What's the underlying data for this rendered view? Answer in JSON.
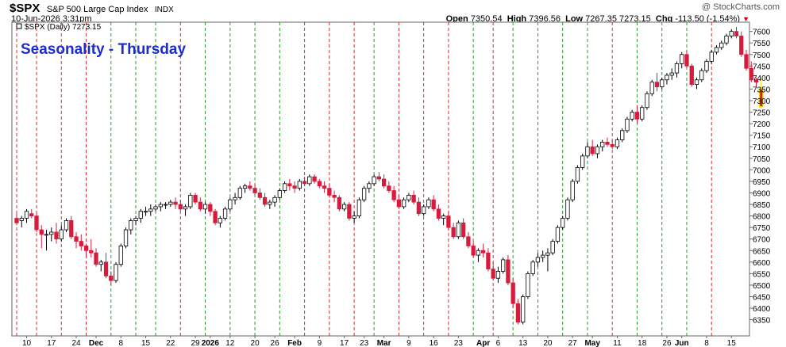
{
  "header": {
    "symbol": "$SPX",
    "name": "S&P 500 Large Cap Index",
    "exchange": "INDX",
    "credit": "@ StockCharts.com",
    "datetime": "10-Jun-2026 3:31pm",
    "open_label": "Open",
    "open": "7350.54",
    "high_label": "High",
    "high": "7396.56",
    "low_label": "Low",
    "low": "7267.35",
    "last": "7273.15",
    "chg_label": "Chg",
    "chg": "-113.50 (-1.54%)"
  },
  "chart_data": {
    "type": "candlestick",
    "title": "Seasonality - Thursday",
    "legend": "$SPX (Daily) 7273.15",
    "legend_position": "top-left",
    "y_axis_side": "right",
    "ylim": [
      6280,
      7640
    ],
    "yticks": [
      6350,
      6400,
      6450,
      6500,
      6550,
      6600,
      6650,
      6700,
      6750,
      6800,
      6850,
      6900,
      6950,
      7000,
      7050,
      7100,
      7150,
      7200,
      7250,
      7300,
      7350,
      7400,
      7450,
      7500,
      7550,
      7600
    ],
    "x_labels": [
      "10",
      "17",
      "24",
      "Dec",
      "8",
      "15",
      "22",
      "29",
      "2026",
      "12",
      "20",
      "26",
      "Feb",
      "9",
      "17",
      "23",
      "Mar",
      "9",
      "16",
      "23",
      "Apr",
      "6",
      "13",
      "20",
      "27",
      "May",
      "11",
      "18",
      "26",
      "Jun",
      "8",
      "15"
    ],
    "x_label_days": [
      2,
      7,
      12,
      16,
      21,
      26,
      31,
      36,
      39,
      43,
      48,
      52,
      56,
      61,
      66,
      70,
      74,
      79,
      84,
      89,
      94,
      97,
      102,
      107,
      112,
      116,
      121,
      126,
      131,
      134,
      139,
      144
    ],
    "num_days": 147,
    "up_color": "#000000",
    "down_color": "#d81b3c",
    "last_bar_highlight": "#f0e000",
    "thursday_line_colors": {
      "up": "#2e9a2e",
      "down": "#d03030"
    },
    "thursday_days": [
      0,
      4,
      9,
      14,
      19,
      24,
      28,
      33,
      38,
      43,
      48,
      53,
      58,
      63,
      68,
      72,
      77,
      82,
      87,
      92,
      96,
      100,
      105,
      110,
      115,
      120,
      125,
      130,
      135,
      140
    ],
    "thursday_dirs": [
      "down",
      "down",
      "down",
      "down",
      "up",
      "up",
      "up",
      "down",
      "up",
      "up",
      "up",
      "up",
      "down",
      "down",
      "down",
      "up",
      "down",
      "down",
      "down",
      "up",
      "down",
      "up",
      "up",
      "up",
      "up",
      "down",
      "up",
      "up",
      "up",
      "down"
    ],
    "ohlc": [
      [
        6790,
        6810,
        6760,
        6770
      ],
      [
        6780,
        6800,
        6750,
        6790
      ],
      [
        6790,
        6830,
        6770,
        6820
      ],
      [
        6810,
        6830,
        6790,
        6800
      ],
      [
        6800,
        6810,
        6730,
        6740
      ],
      [
        6740,
        6760,
        6660,
        6720
      ],
      [
        6720,
        6740,
        6650,
        6720
      ],
      [
        6720,
        6750,
        6690,
        6730
      ],
      [
        6730,
        6770,
        6680,
        6700
      ],
      [
        6700,
        6760,
        6690,
        6740
      ],
      [
        6740,
        6790,
        6730,
        6780
      ],
      [
        6780,
        6800,
        6700,
        6710
      ],
      [
        6710,
        6730,
        6660,
        6690
      ],
      [
        6690,
        6720,
        6650,
        6670
      ],
      [
        6670,
        6680,
        6620,
        6650
      ],
      [
        6650,
        6700,
        6620,
        6640
      ],
      [
        6640,
        6660,
        6580,
        6590
      ],
      [
        6590,
        6610,
        6560,
        6600
      ],
      [
        6600,
        6640,
        6530,
        6540
      ],
      [
        6540,
        6560,
        6500,
        6520
      ],
      [
        6520,
        6600,
        6510,
        6590
      ],
      [
        6590,
        6680,
        6580,
        6670
      ],
      [
        6670,
        6750,
        6660,
        6740
      ],
      [
        6740,
        6790,
        6720,
        6780
      ],
      [
        6780,
        6800,
        6760,
        6790
      ],
      [
        6790,
        6830,
        6770,
        6820
      ],
      [
        6820,
        6840,
        6800,
        6820
      ],
      [
        6820,
        6850,
        6800,
        6830
      ],
      [
        6830,
        6850,
        6820,
        6840
      ],
      [
        6840,
        6860,
        6820,
        6850
      ],
      [
        6850,
        6860,
        6830,
        6850
      ],
      [
        6850,
        6870,
        6840,
        6860
      ],
      [
        6860,
        6880,
        6830,
        6850
      ],
      [
        6850,
        6870,
        6820,
        6830
      ],
      [
        6830,
        6850,
        6800,
        6840
      ],
      [
        6840,
        6900,
        6830,
        6890
      ],
      [
        6890,
        6900,
        6850,
        6860
      ],
      [
        6860,
        6880,
        6820,
        6830
      ],
      [
        6830,
        6860,
        6810,
        6850
      ],
      [
        6850,
        6860,
        6800,
        6820
      ],
      [
        6820,
        6830,
        6760,
        6770
      ],
      [
        6770,
        6800,
        6750,
        6790
      ],
      [
        6790,
        6840,
        6780,
        6830
      ],
      [
        6830,
        6880,
        6820,
        6870
      ],
      [
        6870,
        6900,
        6850,
        6880
      ],
      [
        6880,
        6930,
        6870,
        6920
      ],
      [
        6920,
        6940,
        6900,
        6930
      ],
      [
        6930,
        6950,
        6910,
        6920
      ],
      [
        6920,
        6940,
        6890,
        6900
      ],
      [
        6900,
        6920,
        6870,
        6880
      ],
      [
        6880,
        6900,
        6840,
        6850
      ],
      [
        6850,
        6870,
        6830,
        6860
      ],
      [
        6860,
        6890,
        6840,
        6880
      ],
      [
        6880,
        6920,
        6870,
        6910
      ],
      [
        6910,
        6950,
        6900,
        6940
      ],
      [
        6940,
        6960,
        6910,
        6930
      ],
      [
        6930,
        6950,
        6900,
        6920
      ],
      [
        6920,
        6960,
        6910,
        6950
      ],
      [
        6950,
        6970,
        6930,
        6940
      ],
      [
        6940,
        6980,
        6930,
        6970
      ],
      [
        6970,
        6980,
        6940,
        6950
      ],
      [
        6950,
        6960,
        6920,
        6930
      ],
      [
        6930,
        6950,
        6900,
        6920
      ],
      [
        6920,
        6940,
        6880,
        6890
      ],
      [
        6890,
        6910,
        6860,
        6880
      ],
      [
        6880,
        6890,
        6820,
        6830
      ],
      [
        6830,
        6860,
        6820,
        6850
      ],
      [
        6850,
        6860,
        6780,
        6790
      ],
      [
        6790,
        6820,
        6770,
        6800
      ],
      [
        6800,
        6880,
        6790,
        6870
      ],
      [
        6870,
        6930,
        6860,
        6920
      ],
      [
        6920,
        6950,
        6900,
        6940
      ],
      [
        6940,
        6980,
        6930,
        6970
      ],
      [
        6970,
        6990,
        6950,
        6960
      ],
      [
        6960,
        6980,
        6920,
        6930
      ],
      [
        6930,
        6950,
        6900,
        6910
      ],
      [
        6910,
        6930,
        6860,
        6870
      ],
      [
        6870,
        6890,
        6830,
        6840
      ],
      [
        6840,
        6880,
        6830,
        6870
      ],
      [
        6870,
        6900,
        6860,
        6890
      ],
      [
        6890,
        6910,
        6850,
        6860
      ],
      [
        6860,
        6880,
        6800,
        6810
      ],
      [
        6810,
        6850,
        6800,
        6840
      ],
      [
        6840,
        6880,
        6830,
        6870
      ],
      [
        6870,
        6890,
        6820,
        6830
      ],
      [
        6830,
        6850,
        6780,
        6790
      ],
      [
        6790,
        6810,
        6760,
        6800
      ],
      [
        6800,
        6820,
        6740,
        6750
      ],
      [
        6750,
        6770,
        6700,
        6710
      ],
      [
        6710,
        6780,
        6700,
        6770
      ],
      [
        6770,
        6790,
        6700,
        6710
      ],
      [
        6710,
        6730,
        6660,
        6670
      ],
      [
        6670,
        6690,
        6620,
        6630
      ],
      [
        6630,
        6660,
        6600,
        6650
      ],
      [
        6650,
        6680,
        6620,
        6640
      ],
      [
        6640,
        6660,
        6560,
        6570
      ],
      [
        6570,
        6600,
        6520,
        6530
      ],
      [
        6530,
        6580,
        6510,
        6560
      ],
      [
        6560,
        6620,
        6550,
        6610
      ],
      [
        6610,
        6630,
        6500,
        6510
      ],
      [
        6510,
        6530,
        6400,
        6420
      ],
      [
        6420,
        6440,
        6330,
        6340
      ],
      [
        6340,
        6460,
        6330,
        6450
      ],
      [
        6450,
        6560,
        6440,
        6550
      ],
      [
        6550,
        6610,
        6540,
        6600
      ],
      [
        6600,
        6640,
        6580,
        6620
      ],
      [
        6620,
        6650,
        6600,
        6630
      ],
      [
        6630,
        6660,
        6560,
        6640
      ],
      [
        6640,
        6700,
        6630,
        6690
      ],
      [
        6690,
        6760,
        6680,
        6750
      ],
      [
        6750,
        6800,
        6740,
        6790
      ],
      [
        6790,
        6880,
        6780,
        6870
      ],
      [
        6870,
        6960,
        6860,
        6950
      ],
      [
        6950,
        7020,
        6940,
        7010
      ],
      [
        7010,
        7070,
        7000,
        7060
      ],
      [
        7060,
        7120,
        7050,
        7100
      ],
      [
        7100,
        7130,
        7060,
        7070
      ],
      [
        7070,
        7110,
        7050,
        7100
      ],
      [
        7100,
        7130,
        7080,
        7120
      ],
      [
        7120,
        7140,
        7100,
        7110
      ],
      [
        7110,
        7130,
        7090,
        7100
      ],
      [
        7100,
        7140,
        7090,
        7130
      ],
      [
        7130,
        7180,
        7120,
        7170
      ],
      [
        7170,
        7230,
        7160,
        7220
      ],
      [
        7220,
        7260,
        7210,
        7250
      ],
      [
        7250,
        7280,
        7200,
        7220
      ],
      [
        7220,
        7280,
        7210,
        7270
      ],
      [
        7270,
        7340,
        7260,
        7330
      ],
      [
        7330,
        7390,
        7320,
        7380
      ],
      [
        7380,
        7420,
        7340,
        7360
      ],
      [
        7360,
        7400,
        7350,
        7390
      ],
      [
        7390,
        7420,
        7370,
        7410
      ],
      [
        7410,
        7440,
        7390,
        7420
      ],
      [
        7420,
        7470,
        7400,
        7460
      ],
      [
        7460,
        7510,
        7440,
        7500
      ],
      [
        7500,
        7520,
        7440,
        7450
      ],
      [
        7450,
        7460,
        7360,
        7370
      ],
      [
        7370,
        7400,
        7350,
        7390
      ],
      [
        7390,
        7440,
        7380,
        7430
      ],
      [
        7430,
        7480,
        7420,
        7470
      ],
      [
        7470,
        7520,
        7460,
        7510
      ],
      [
        7510,
        7540,
        7500,
        7530
      ],
      [
        7530,
        7560,
        7520,
        7550
      ],
      [
        7550,
        7590,
        7540,
        7580
      ],
      [
        7580,
        7610,
        7570,
        7600
      ],
      [
        7600,
        7620,
        7570,
        7580
      ],
      [
        7580,
        7600,
        7490,
        7500
      ],
      [
        7500,
        7520,
        7430,
        7440
      ],
      [
        7440,
        7470,
        7380,
        7390
      ],
      [
        7390,
        7400,
        7360,
        7380
      ],
      [
        7350.54,
        7396.56,
        7267.35,
        7273.15
      ]
    ]
  }
}
